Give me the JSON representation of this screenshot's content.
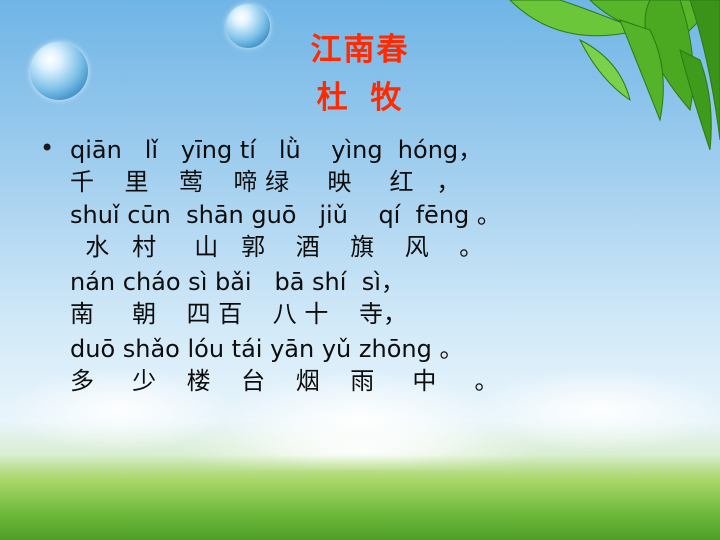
{
  "poem": {
    "title": "江南春",
    "author": [
      "杜",
      "牧"
    ],
    "lines": [
      "qiān   lǐ   yīng tí   lǜ    yìng  hóng，",
      "千    里    莺    啼 绿     映     红   ，",
      "shuǐ cūn  shān guō   jiǔ    qí  fēng 。",
      "  水   村     山   郭    酒    旗    风    。",
      "nán cháo sì bǎi   bā shí  sì，",
      "南     朝    四 百    八 十    寺，",
      "duō shǎo lóu tái yān yǔ zhōng 。",
      "多     少    楼    台    烟    雨     中     。"
    ]
  },
  "decor": {
    "bullet": "•",
    "icons": [
      "bubble-icon",
      "leaves-icon"
    ],
    "colors": {
      "title": "#ff2a00",
      "text": "#0d0d0d"
    }
  }
}
